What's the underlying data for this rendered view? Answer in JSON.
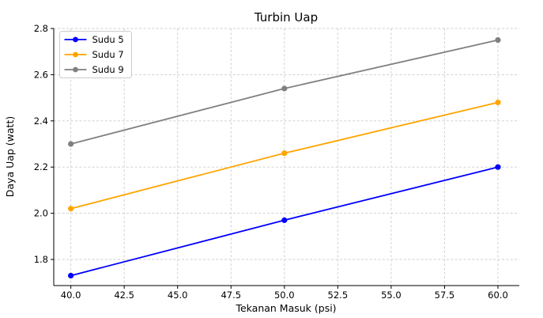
{
  "figure": {
    "background": "#ffffff"
  },
  "chart_data": {
    "type": "line",
    "title": "Turbin Uap",
    "xlabel": "Tekanan Masuk (psi)",
    "ylabel": "Daya Uap (watt)",
    "x": [
      40,
      50,
      60
    ],
    "series": [
      {
        "name": "Sudu 5",
        "color": "#0000ff",
        "values": [
          1.73,
          1.97,
          2.2
        ]
      },
      {
        "name": "Sudu 7",
        "color": "#ffa500",
        "values": [
          2.02,
          2.26,
          2.48
        ]
      },
      {
        "name": "Sudu 9",
        "color": "#808080",
        "values": [
          2.3,
          2.54,
          2.75
        ]
      }
    ],
    "xticks": {
      "values": [
        40,
        42.5,
        45,
        47.5,
        50,
        52.5,
        55,
        57.5,
        60
      ],
      "labels": [
        "40.0",
        "42.5",
        "45.0",
        "47.5",
        "50.0",
        "52.5",
        "55.0",
        "57.5",
        "60.0"
      ]
    },
    "yticks": {
      "values": [
        1.8,
        2.0,
        2.2,
        2.4,
        2.6,
        2.8
      ],
      "labels": [
        "1.8",
        "2.0",
        "2.2",
        "2.4",
        "2.6",
        "2.8"
      ]
    },
    "xlim": [
      39.2,
      61.0
    ],
    "ylim": [
      1.687,
      2.8
    ],
    "grid": true,
    "grid_color": "#cccccc",
    "axis_color": "#000000",
    "text_color": "#000000",
    "legend": {
      "position": "upper-left",
      "entries": [
        "Sudu 5",
        "Sudu 7",
        "Sudu 9"
      ]
    },
    "marker": "circle",
    "line_width": 1.8
  }
}
